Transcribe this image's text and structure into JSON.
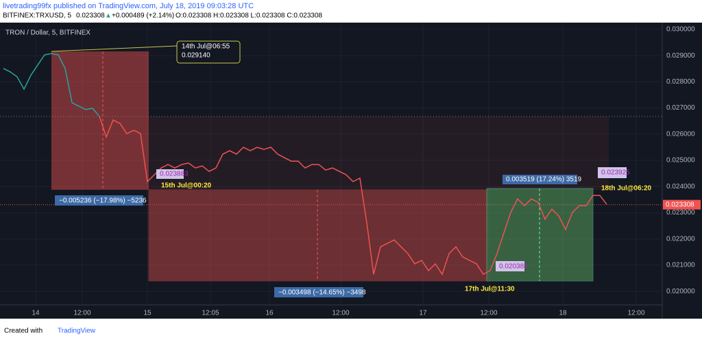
{
  "header": {
    "line1": "livetrading99fx published on TradingView.com, July 18, 2019 09:03:28 UTC",
    "symbol": "BITFINEX:TRXUSD, 5",
    "last": "0.023308",
    "change": "+0.000489 (+2.14%)",
    "ohlc": "O:0.023308 H:0.023308 L:0.023308 C:0.023308"
  },
  "footer": {
    "created": "Created with",
    "brand": "TradingView"
  },
  "chart_data": {
    "type": "line",
    "title": "TRON / Dollar, 5, BITFINEX",
    "xlim": [
      -0.5,
      96.1
    ],
    "xticks": [
      {
        "value": 4.7,
        "label": "14"
      },
      {
        "value": 11.5,
        "label": "12:00"
      },
      {
        "value": 21,
        "label": "15"
      },
      {
        "value": 30.2,
        "label": "12:05"
      },
      {
        "value": 38.8,
        "label": "16"
      },
      {
        "value": 49.2,
        "label": "12:00"
      },
      {
        "value": 61.2,
        "label": "17"
      },
      {
        "value": 70.8,
        "label": "12:00"
      },
      {
        "value": 81.6,
        "label": "18"
      },
      {
        "value": 92.3,
        "label": "12:00"
      }
    ],
    "ylim": [
      0.01948,
      0.03026
    ],
    "yticks": [
      {
        "value": 0.02,
        "label": "0.020000"
      },
      {
        "value": 0.021,
        "label": "0.021000"
      },
      {
        "value": 0.022,
        "label": "0.022000"
      },
      {
        "value": 0.023,
        "label": "0.023000"
      },
      {
        "value": 0.024,
        "label": "0.024000"
      },
      {
        "value": 0.025,
        "label": "0.025000"
      },
      {
        "value": 0.026,
        "label": "0.026000"
      },
      {
        "value": 0.027,
        "label": "0.027000"
      },
      {
        "value": 0.028,
        "label": "0.028000"
      },
      {
        "value": 0.029,
        "label": "0.029000"
      },
      {
        "value": 0.03,
        "label": "0.030000"
      }
    ],
    "current_price": {
      "value": 0.023308,
      "label": "0.023308"
    },
    "series": [
      {
        "color": "#26a69a",
        "values": [
          0.02851,
          0.02838,
          0.02819,
          0.02772,
          0.02825,
          0.02864,
          0.02903,
          0.02908,
          0.02903,
          0.02851,
          0.0272,
          0.02707,
          0.02694,
          0.02699,
          0.02668,
          null,
          null,
          null,
          null,
          null,
          null,
          null,
          null,
          null,
          null,
          null,
          null,
          null,
          null,
          null,
          null,
          null,
          null,
          null,
          null,
          null,
          null,
          null,
          null,
          null,
          null,
          null,
          null,
          null,
          null,
          null,
          null,
          null,
          null,
          null,
          null,
          null,
          null,
          null,
          null,
          null,
          null,
          null,
          null,
          null,
          null,
          null,
          null,
          null,
          null,
          null,
          null,
          null,
          null,
          null,
          null,
          null,
          null,
          null,
          null,
          null,
          null,
          null,
          null,
          null,
          null,
          null,
          null,
          null,
          null,
          null,
          null,
          null,
          null
        ]
      },
      {
        "color": "#ef5350",
        "values": [
          null,
          null,
          null,
          null,
          null,
          null,
          null,
          null,
          null,
          null,
          null,
          null,
          null,
          null,
          0.02668,
          0.02589,
          0.02654,
          0.02641,
          0.02602,
          0.02615,
          0.02602,
          0.02419,
          0.02445,
          0.02471,
          0.02484,
          0.02471,
          0.02484,
          0.0249,
          0.02471,
          0.02479,
          0.02458,
          0.02471,
          0.02524,
          0.02537,
          0.02524,
          0.0255,
          0.02537,
          0.0255,
          0.02542,
          0.0255,
          0.02524,
          0.0251,
          0.02497,
          0.02497,
          0.02471,
          0.02484,
          0.02484,
          0.02463,
          0.02471,
          0.02458,
          0.02445,
          0.02419,
          0.02432,
          0.02262,
          0.02065,
          0.0217,
          0.02183,
          0.02196,
          0.0217,
          0.02144,
          0.02105,
          0.02118,
          0.02079,
          0.02105,
          0.02065,
          0.02144,
          0.0217,
          0.02131,
          0.02118,
          0.02105,
          0.02065,
          0.02079,
          0.02144,
          0.02223,
          0.02301,
          0.02353,
          0.02327,
          0.02353,
          0.0234,
          0.02275,
          0.02314,
          0.02288,
          0.02236,
          0.02301,
          0.02327,
          0.02327,
          0.02366,
          0.02366,
          0.02332
        ]
      }
    ],
    "annotations": [
      "14th Jul@06:55",
      "0.029140",
      "0.023883",
      "15th Jul@00:20",
      "−0.005236 (−17.98%) −5236",
      "0.020385",
      "17th Jul@11:30",
      "−0.003498 (−14.65%) −3498",
      "0.003519 (17.24%) 3519",
      "0.023925",
      "18th Jul@06:20"
    ]
  }
}
